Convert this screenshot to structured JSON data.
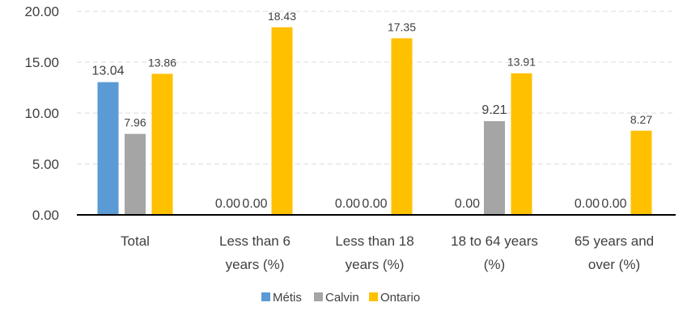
{
  "chart_data": {
    "type": "bar",
    "title": "",
    "xlabel": "",
    "ylabel": "",
    "ylim": [
      0,
      20
    ],
    "yticks": [
      "0.00",
      "5.00",
      "10.00",
      "15.00",
      "20.00"
    ],
    "grid": true,
    "legend_position": "bottom",
    "categories": [
      [
        "Total"
      ],
      [
        "Less than 6",
        "years (%)"
      ],
      [
        "Less than 18",
        "years (%)"
      ],
      [
        "18 to 64 years",
        "(%)"
      ],
      [
        "65 years and",
        "over (%)"
      ]
    ],
    "series": [
      {
        "name": "Métis",
        "color": "#5B9BD5",
        "values": [
          13.04,
          0.0,
          0.0,
          0.0,
          0.0
        ],
        "labels": [
          "13.04",
          "0.00",
          "0.00",
          "0.00",
          "0.00"
        ]
      },
      {
        "name": "Calvin",
        "color": "#A5A5A5",
        "values": [
          7.96,
          0.0,
          0.0,
          9.21,
          0.0
        ],
        "labels": [
          "7.96",
          "0.00",
          "0.00",
          "9.21",
          "0.00"
        ]
      },
      {
        "name": "Ontario",
        "color": "#FFC000",
        "values": [
          13.86,
          18.43,
          17.35,
          13.91,
          8.27
        ],
        "labels": [
          "13.86",
          "18.43",
          "17.35",
          "13.91",
          "8.27"
        ]
      }
    ]
  }
}
